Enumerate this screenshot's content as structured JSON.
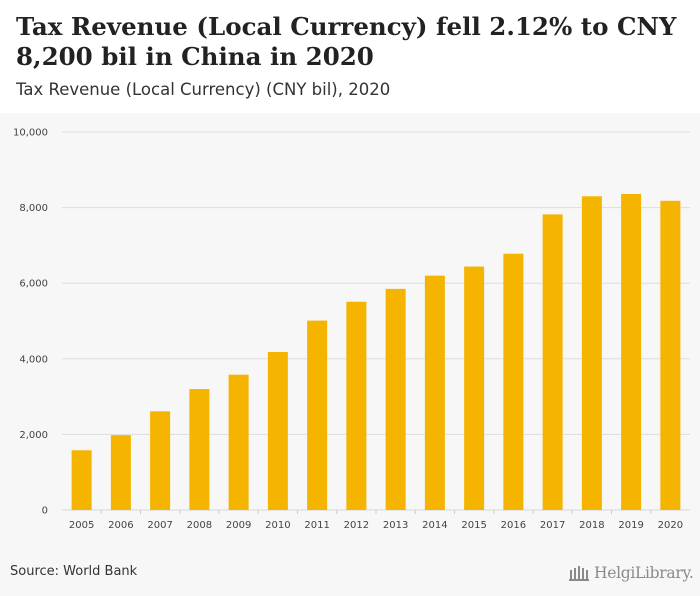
{
  "header": {
    "title": "Tax Revenue (Local Currency) fell 2.12% to CNY 8,200 bil in China in 2020",
    "subtitle": "Tax Revenue (Local Currency) (CNY bil), 2020"
  },
  "footer": {
    "source": "Source: World Bank",
    "logo_text": "HelgiLibrary."
  },
  "colors": {
    "bar": "#f4b400",
    "grid": "#dddddd",
    "background": "#f7f7f7"
  },
  "chart_data": {
    "type": "bar",
    "title": "",
    "xlabel": "",
    "ylabel": "",
    "categories": [
      "2005",
      "2006",
      "2007",
      "2008",
      "2009",
      "2010",
      "2011",
      "2012",
      "2013",
      "2014",
      "2015",
      "2016",
      "2017",
      "2018",
      "2019",
      "2020"
    ],
    "values": [
      1580,
      1980,
      2610,
      3200,
      3580,
      4180,
      5010,
      5510,
      5850,
      6200,
      6440,
      6780,
      7820,
      8300,
      8360,
      8180
    ],
    "ylim": [
      0,
      10000
    ],
    "yticks": [
      0,
      2000,
      4000,
      6000,
      8000,
      10000
    ],
    "ytick_labels": [
      "0",
      "2,000",
      "4,000",
      "6,000",
      "8,000",
      "10,000"
    ],
    "grid": true,
    "legend": "none"
  }
}
